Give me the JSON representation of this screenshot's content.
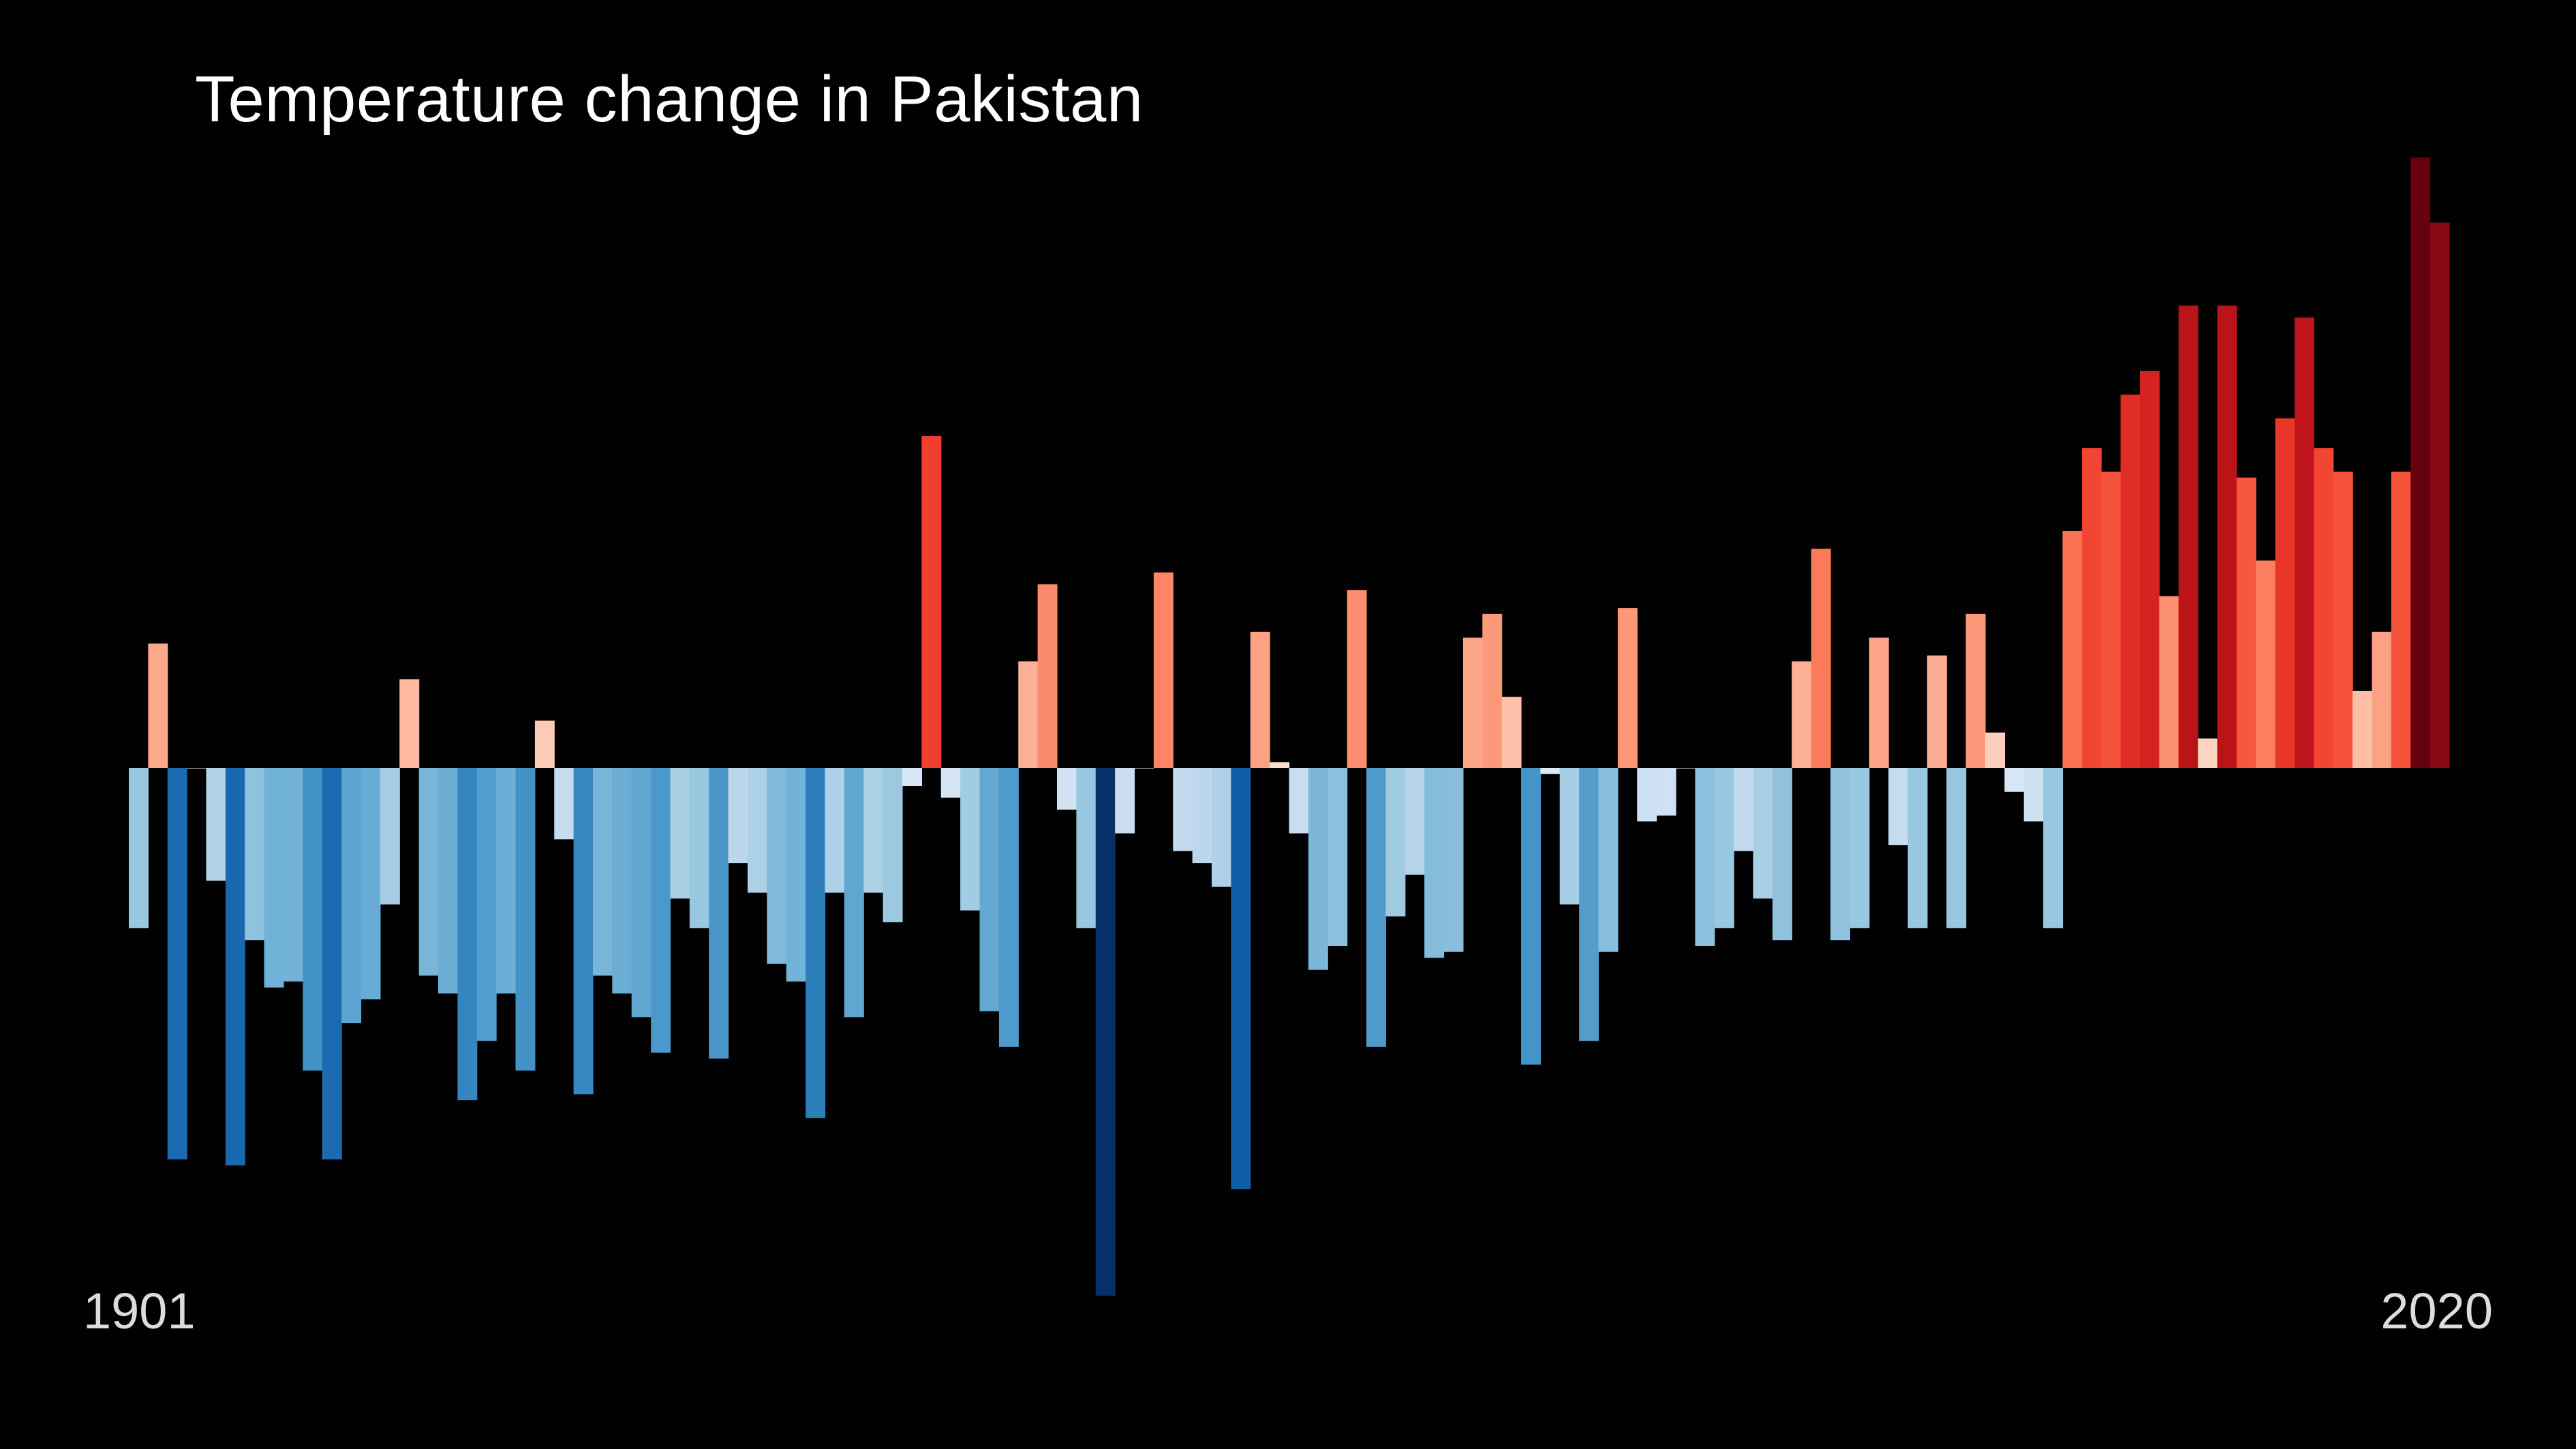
{
  "chart_data": {
    "type": "bar",
    "title": "Temperature change in Pakistan",
    "start_label": "1901",
    "end_label": "2020",
    "xlabel": "",
    "ylabel": "",
    "ylim": [
      -0.89,
      1.03
    ],
    "grid": false,
    "legend": "none",
    "x_range": [
      1901,
      2020
    ],
    "colors": {
      "background": "#000000",
      "title_text": "#ffffff",
      "label_text": "#dcdcdc"
    },
    "values": [
      -0.27,
      0.21,
      -0.66,
      0.0,
      -0.19,
      -0.67,
      -0.29,
      -0.37,
      -0.36,
      -0.51,
      -0.66,
      -0.43,
      -0.39,
      -0.23,
      0.15,
      -0.35,
      -0.38,
      -0.56,
      -0.46,
      -0.38,
      -0.51,
      0.08,
      -0.12,
      -0.55,
      -0.35,
      -0.38,
      -0.42,
      -0.48,
      -0.22,
      -0.27,
      -0.49,
      -0.16,
      -0.21,
      -0.33,
      -0.36,
      -0.59,
      -0.21,
      -0.42,
      -0.21,
      -0.26,
      -0.03,
      0.56,
      -0.05,
      -0.24,
      -0.41,
      -0.47,
      0.18,
      0.31,
      -0.07,
      -0.27,
      -0.89,
      -0.11,
      0.0,
      0.33,
      -0.14,
      -0.16,
      -0.2,
      -0.71,
      0.23,
      0.01,
      -0.11,
      -0.34,
      -0.3,
      0.3,
      -0.47,
      -0.25,
      -0.18,
      -0.32,
      -0.31,
      0.22,
      0.26,
      0.12,
      -0.5,
      -0.01,
      -0.23,
      -0.46,
      -0.31,
      0.27,
      -0.09,
      -0.08,
      0.0,
      -0.3,
      -0.27,
      -0.14,
      -0.22,
      -0.29,
      0.18,
      0.37,
      -0.29,
      -0.27,
      0.22,
      -0.13,
      -0.27,
      0.19,
      -0.27,
      0.26,
      0.06,
      -0.04,
      -0.09,
      -0.27,
      0.4,
      0.54,
      0.5,
      0.63,
      0.67,
      0.29,
      0.78,
      0.05,
      0.78,
      0.49,
      0.35,
      0.59,
      0.76,
      0.54,
      0.5,
      0.13,
      0.23,
      0.5,
      1.03,
      0.92
    ],
    "palette": {
      "blue_stops": [
        "#deebf7",
        "#c6dbef",
        "#9ecae1",
        "#6baed6",
        "#4292c6",
        "#2171b5",
        "#08519c",
        "#08306b"
      ],
      "red_stops": [
        "#fee0d2",
        "#fcbba1",
        "#fc9272",
        "#fb6a4a",
        "#ef3b2c",
        "#cb181d",
        "#a50f15",
        "#67000d"
      ]
    }
  }
}
